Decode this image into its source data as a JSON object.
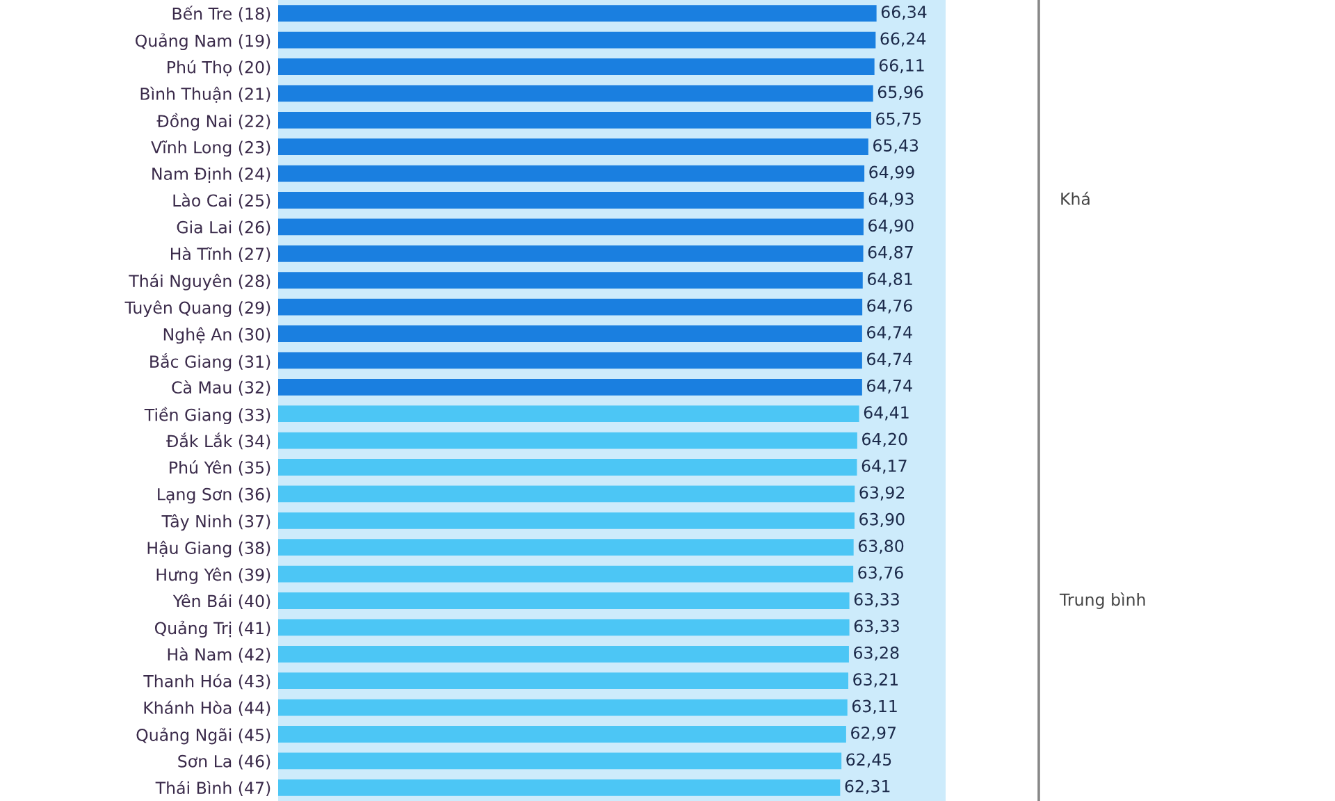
{
  "chart_data": {
    "type": "bar",
    "orientation": "horizontal",
    "categories": [
      "Bến Tre (18)",
      "Quảng Nam (19)",
      "Phú Thọ (20)",
      "Bình Thuận (21)",
      "Đồng Nai (22)",
      "Vĩnh Long (23)",
      "Nam Định (24)",
      "Lào Cai (25)",
      "Gia Lai (26)",
      "Hà Tĩnh (27)",
      "Thái Nguyên (28)",
      "Tuyên Quang (29)",
      "Nghệ An (30)",
      "Bắc Giang (31)",
      "Cà Mau (32)",
      "Tiền Giang (33)",
      "Đắk Lắk (34)",
      "Phú Yên (35)",
      "Lạng Sơn (36)",
      "Tây Ninh (37)",
      "Hậu Giang (38)",
      "Hưng Yên (39)",
      "Yên Bái (40)",
      "Quảng Trị (41)",
      "Hà Nam (42)",
      "Thanh Hóa (43)",
      "Khánh Hòa (44)",
      "Quảng Ngãi (45)",
      "Sơn La (46)",
      "Thái Bình (47)"
    ],
    "values": [
      66.34,
      66.24,
      66.11,
      65.96,
      65.75,
      65.43,
      64.99,
      64.93,
      64.9,
      64.87,
      64.81,
      64.76,
      64.74,
      64.74,
      64.74,
      64.41,
      64.2,
      64.17,
      63.92,
      63.9,
      63.8,
      63.76,
      63.33,
      63.33,
      63.28,
      63.21,
      63.11,
      62.97,
      62.45,
      62.31
    ],
    "value_labels": [
      "66,34",
      "66,24",
      "66,11",
      "65,96",
      "65,75",
      "65,43",
      "64,99",
      "64,93",
      "64,90",
      "64,87",
      "64,81",
      "64,76",
      "64,74",
      "64,74",
      "64,74",
      "64,41",
      "64,20",
      "64,17",
      "63,92",
      "63,90",
      "63,80",
      "63,76",
      "63,33",
      "63,33",
      "63,28",
      "63,21",
      "63,11",
      "62,97",
      "62,45",
      "62,31"
    ],
    "colors": [
      "#1a7fe0",
      "#1a7fe0",
      "#1a7fe0",
      "#1a7fe0",
      "#1a7fe0",
      "#1a7fe0",
      "#1a7fe0",
      "#1a7fe0",
      "#1a7fe0",
      "#1a7fe0",
      "#1a7fe0",
      "#1a7fe0",
      "#1a7fe0",
      "#1a7fe0",
      "#1a7fe0",
      "#4cc6f5",
      "#4cc6f5",
      "#4cc6f5",
      "#4cc6f5",
      "#4cc6f5",
      "#4cc6f5",
      "#4cc6f5",
      "#4cc6f5",
      "#4cc6f5",
      "#4cc6f5",
      "#4cc6f5",
      "#4cc6f5",
      "#4cc6f5",
      "#4cc6f5",
      "#4cc6f5"
    ],
    "xlim": [
      0,
      74
    ],
    "tick_labels": "y",
    "grid": false,
    "legend": false,
    "annotations": [
      "Khá",
      "Trung bình"
    ]
  }
}
